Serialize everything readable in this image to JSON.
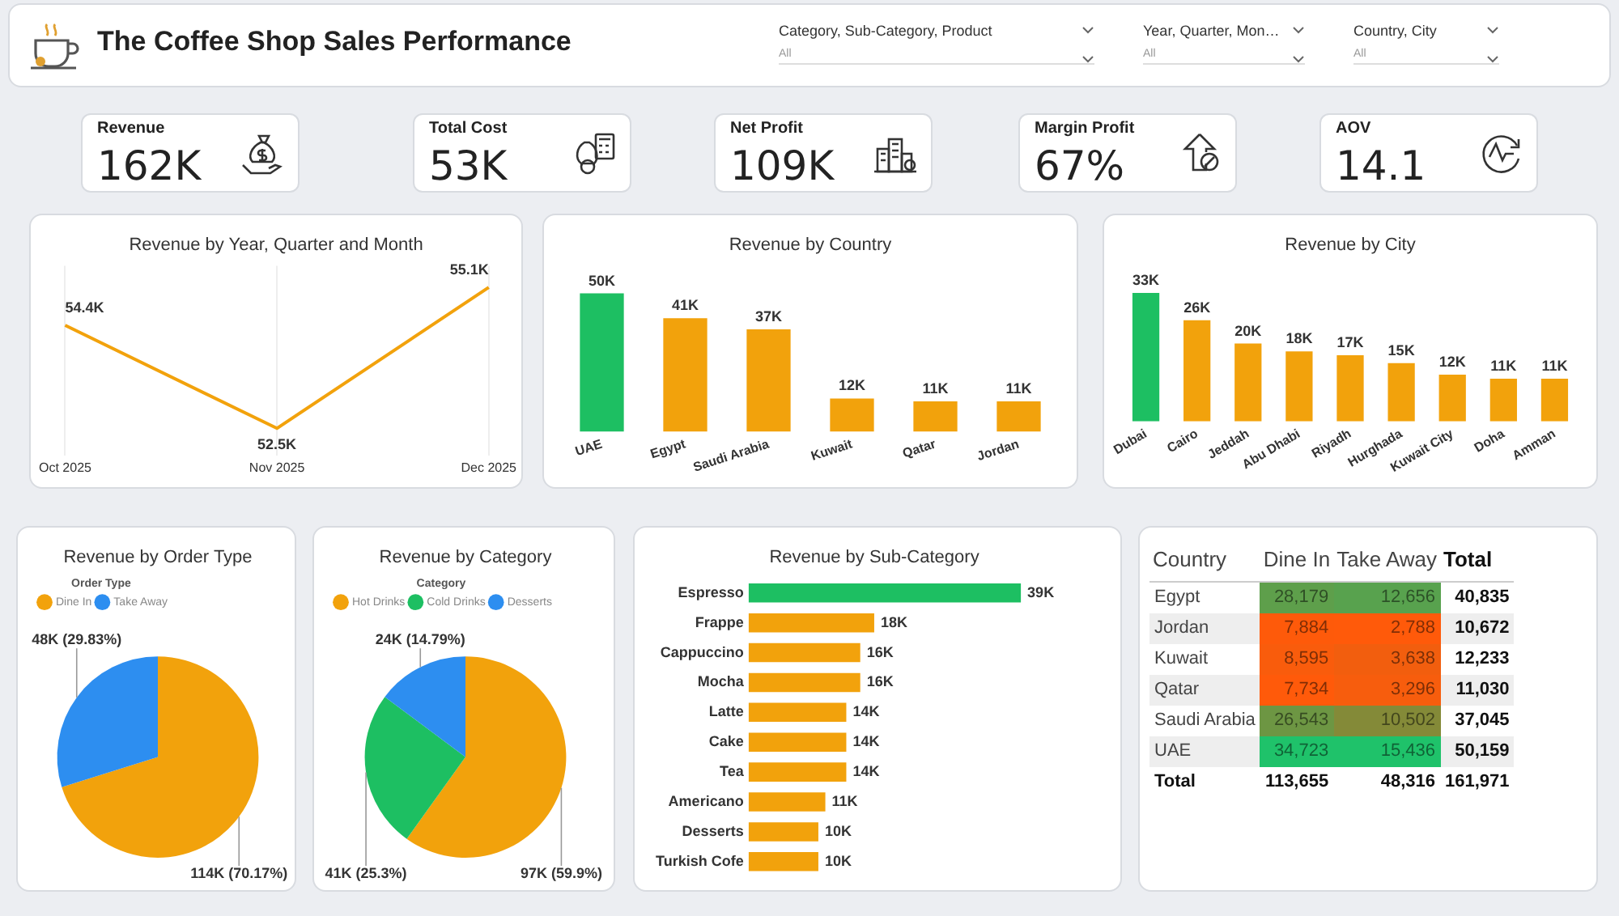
{
  "chart_data": [
    {
      "type": "other",
      "title": "The Coffee Shop Sales Performance",
      "annotations": [
        "Category, Sub-Category, Product",
        "All",
        "Year, Quarter, Mon…",
        "All",
        "Country, City",
        "All"
      ]
    },
    {
      "type": "other",
      "annotations": [
        "Revenue",
        "162K",
        "Total Cost",
        "53K",
        "Net Profit",
        "109K",
        "Margin Profit",
        "67%",
        "AOV",
        "14.1"
      ]
    },
    {
      "type": "line",
      "title": "Revenue by Year, Quarter and Month",
      "categories": [
        "Oct 2025",
        "Nov 2025",
        "Dec 2025"
      ],
      "values": [
        54.4,
        52.5,
        55.1
      ],
      "value_labels": [
        "54.4K",
        "52.5K",
        "55.1K"
      ],
      "color": "#f2a20c",
      "grid": "x",
      "marker": "none"
    },
    {
      "type": "bar",
      "title": "Revenue by Country",
      "categories": [
        "UAE",
        "Egypt",
        "Saudi Arabia",
        "Kuwait",
        "Qatar",
        "Jordan"
      ],
      "values": [
        50,
        41,
        37,
        12,
        11,
        11
      ],
      "value_labels": [
        "50K",
        "41K",
        "37K",
        "12K",
        "11K",
        "11K"
      ],
      "colors": [
        "#1dbf62",
        "#f2a20c",
        "#f2a20c",
        "#f2a20c",
        "#f2a20c",
        "#f2a20c"
      ]
    },
    {
      "type": "bar",
      "title": "Revenue by City",
      "categories": [
        "Dubai",
        "Cairo",
        "Jeddah",
        "Abu Dhabi",
        "Riyadh",
        "Hurghada",
        "Kuwait City",
        "Doha",
        "Amman"
      ],
      "values": [
        33,
        26,
        20,
        18,
        17,
        15,
        12,
        11,
        11
      ],
      "value_labels": [
        "33K",
        "26K",
        "20K",
        "18K",
        "17K",
        "15K",
        "12K",
        "11K",
        "11K"
      ],
      "colors": [
        "#1dbf62",
        "#f2a20c",
        "#f2a20c",
        "#f2a20c",
        "#f2a20c",
        "#f2a20c",
        "#f2a20c",
        "#f2a20c",
        "#f2a20c"
      ]
    },
    {
      "type": "pie",
      "title": "Revenue by Order Type",
      "legend_title": "Order Type",
      "legend": "top left",
      "categories": [
        "Dine In",
        "Take Away"
      ],
      "values": [
        70.17,
        29.83
      ],
      "value_labels": [
        "114K (70.17%)",
        "48K (29.83%)"
      ],
      "colors": [
        "#f2a20c",
        "#2d8ef0"
      ]
    },
    {
      "type": "pie",
      "title": "Revenue by Category",
      "legend_title": "Category",
      "legend": "top left",
      "categories": [
        "Hot Drinks",
        "Cold Drinks",
        "Desserts"
      ],
      "values": [
        59.9,
        25.3,
        14.79
      ],
      "value_labels": [
        "97K (59.9%)",
        "41K (25.3%)",
        "24K (14.79%)"
      ],
      "colors": [
        "#f2a20c",
        "#1dbf62",
        "#2d8ef0"
      ]
    },
    {
      "type": "bar",
      "orientation": "horizontal",
      "title": "Revenue by Sub-Category",
      "categories": [
        "Espresso",
        "Frappe",
        "Cappuccino",
        "Mocha",
        "Latte",
        "Cake",
        "Tea",
        "Americano",
        "Desserts",
        "Turkish Cofe"
      ],
      "values": [
        39,
        18,
        16,
        16,
        14,
        14,
        14,
        11,
        10,
        10
      ],
      "value_labels": [
        "39K",
        "18K",
        "16K",
        "16K",
        "14K",
        "14K",
        "14K",
        "11K",
        "10K",
        "10K"
      ],
      "colors": [
        "#1dbf62",
        "#f2a20c",
        "#f2a20c",
        "#f2a20c",
        "#f2a20c",
        "#f2a20c",
        "#f2a20c",
        "#f2a20c",
        "#f2a20c",
        "#f2a20c"
      ]
    },
    {
      "type": "heatmap",
      "ylabel": "Country",
      "categories": [
        "Dine In",
        "Take Away",
        "Total"
      ],
      "y_categories": [
        "Egypt",
        "Jordan",
        "Kuwait",
        "Qatar",
        "Saudi Arabia",
        "UAE",
        "Total"
      ],
      "cells": [
        [
          28179,
          12656,
          40835
        ],
        [
          7884,
          2788,
          10672
        ],
        [
          8595,
          3638,
          12233
        ],
        [
          7734,
          3296,
          11030
        ],
        [
          26543,
          10502,
          37045
        ],
        [
          34723,
          15436,
          50159
        ],
        [
          113655,
          48316,
          161971
        ]
      ],
      "cell_labels": [
        [
          "28,179",
          "12,656",
          "40,835"
        ],
        [
          "7,884",
          "2,788",
          "10,672"
        ],
        [
          "8,595",
          "3,638",
          "12,233"
        ],
        [
          "7,734",
          "3,296",
          "11,030"
        ],
        [
          "26,543",
          "10,502",
          "37,045"
        ],
        [
          "34,723",
          "15,436",
          "50,159"
        ],
        [
          "113,655",
          "48,316",
          "161,971"
        ]
      ]
    }
  ]
}
